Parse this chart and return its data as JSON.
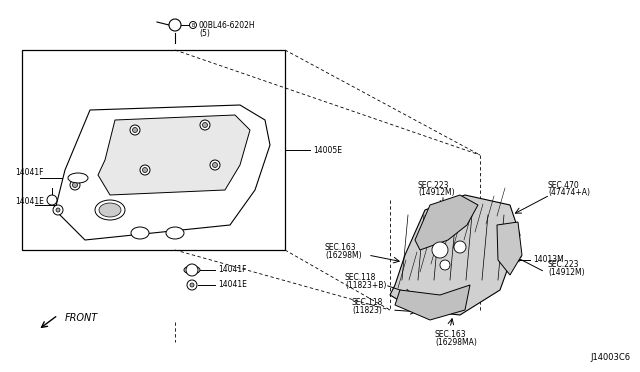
{
  "bg_color": "#ffffff",
  "fig_width": 6.4,
  "fig_height": 3.72,
  "dpi": 100,
  "diagram_code": "J14003C6",
  "labels": {
    "bolt_top": "00BL46-6202H",
    "bolt_top2": "(5)",
    "label_14005E": "14005E",
    "label_14041F_left": "14041F",
    "label_14041E_left": "14041E",
    "label_14041F_right": "14041F",
    "label_14041E_right": "14041E",
    "label_14013M": "14013M",
    "sec_223_top": "SEC.223",
    "sec_223_top2": "(14912M)",
    "sec_470": "SEC.470",
    "sec_470b": "(47474+A)",
    "sec_163_left": "SEC.163",
    "sec_163_left2": "(16298M)",
    "sec_118": "SEC.118",
    "sec_118b": "(11823+B)",
    "sec_118c": "SEC.118",
    "sec_118d": "(11823)",
    "sec_163_bot": "SEC.163",
    "sec_163_bot2": "(16298MA)",
    "sec_223_right": "SEC.223",
    "sec_223_right2": "(14912M)",
    "front_label": "FRONT"
  },
  "font_size_small": 5.5,
  "font_size_code": 6.0,
  "line_color": "#000000",
  "line_color_light": "#888888"
}
